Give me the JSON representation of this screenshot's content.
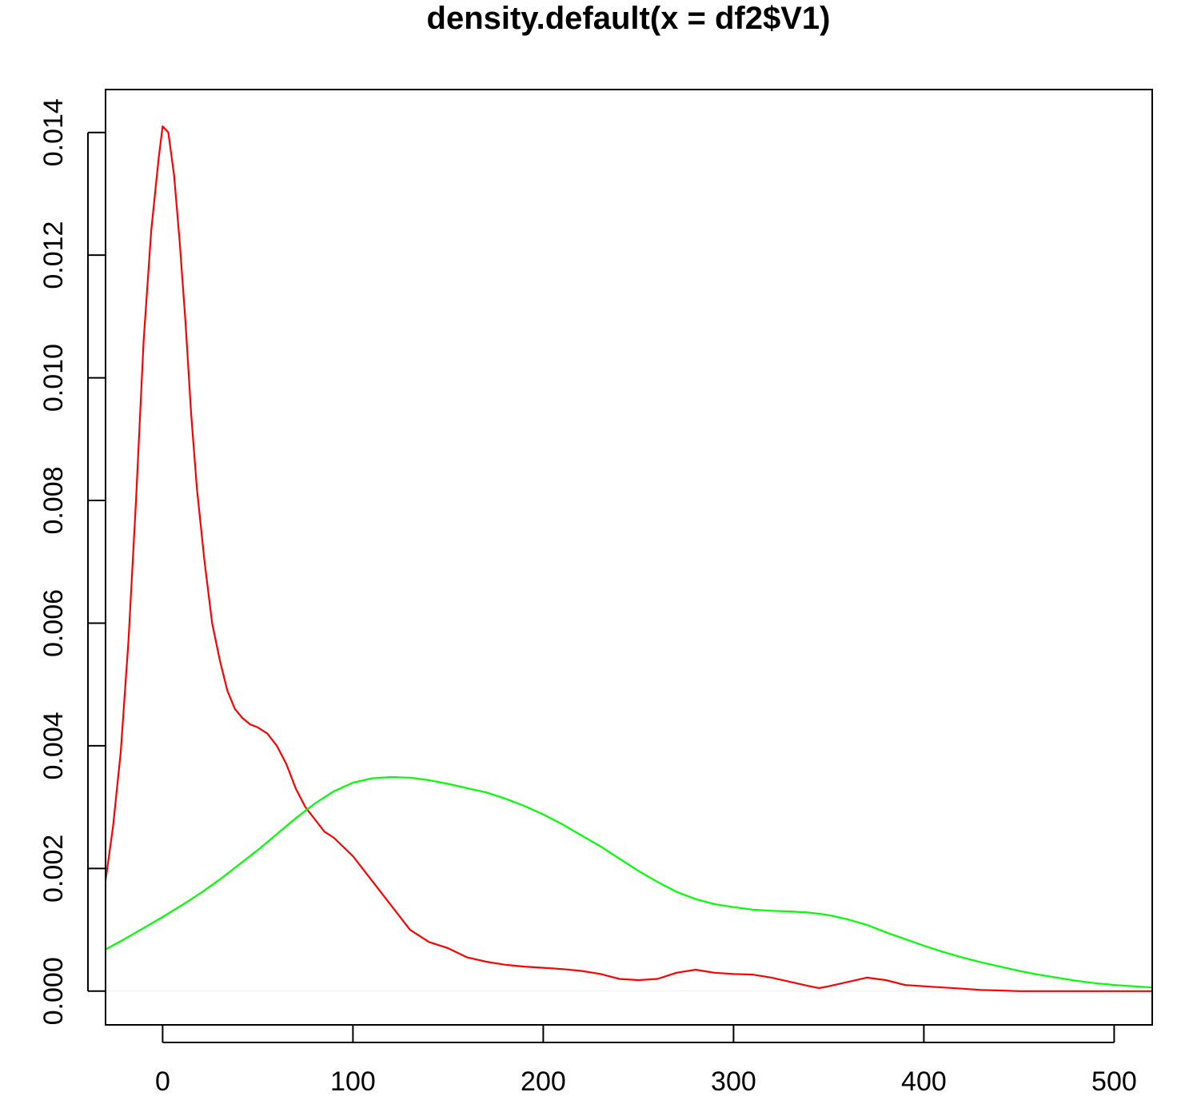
{
  "chart_data": {
    "type": "line",
    "title": "density.default(x = df2$V1)",
    "xlabel": "",
    "ylabel": "",
    "xlim": [
      -30,
      520
    ],
    "ylim": [
      -0.00055,
      0.0147
    ],
    "x_ticks": [
      0,
      100,
      200,
      300,
      400,
      500
    ],
    "y_ticks": [
      0.0,
      0.002,
      0.004,
      0.006,
      0.008,
      0.01,
      0.012,
      0.014
    ],
    "x_tick_labels": [
      "0",
      "100",
      "200",
      "300",
      "400",
      "500"
    ],
    "y_tick_labels": [
      "0.000",
      "0.002",
      "0.004",
      "0.006",
      "0.008",
      "0.010",
      "0.012",
      "0.014"
    ],
    "grid": false,
    "baseline": 0,
    "series": [
      {
        "color": "#ff0000",
        "x": [
          -30,
          -26,
          -22,
          -18,
          -14,
          -10,
          -6,
          -2,
          0,
          3,
          6,
          9,
          12,
          15,
          18,
          22,
          26,
          30,
          34,
          38,
          42,
          46,
          50,
          55,
          60,
          65,
          70,
          75,
          80,
          85,
          90,
          100,
          110,
          120,
          130,
          140,
          150,
          160,
          170,
          180,
          190,
          200,
          210,
          220,
          230,
          240,
          250,
          260,
          270,
          280,
          290,
          300,
          310,
          320,
          330,
          340,
          345,
          350,
          360,
          370,
          380,
          390,
          400,
          410,
          420,
          430,
          440,
          450,
          460,
          480,
          500,
          520
        ],
        "y": [
          0.0018,
          0.0027,
          0.0039,
          0.0057,
          0.008,
          0.0106,
          0.0124,
          0.0136,
          0.0141,
          0.014,
          0.0133,
          0.0122,
          0.0109,
          0.0094,
          0.0082,
          0.007,
          0.006,
          0.0054,
          0.0049,
          0.0046,
          0.00445,
          0.00435,
          0.0043,
          0.0042,
          0.004,
          0.0037,
          0.0033,
          0.003,
          0.0028,
          0.0026,
          0.0025,
          0.0022,
          0.0018,
          0.0014,
          0.001,
          0.0008,
          0.0007,
          0.00055,
          0.00048,
          0.00043,
          0.0004,
          0.00038,
          0.00036,
          0.00033,
          0.00028,
          0.0002,
          0.00018,
          0.0002,
          0.0003,
          0.00035,
          0.0003,
          0.00028,
          0.00027,
          0.00022,
          0.00015,
          8e-05,
          5e-05,
          8e-05,
          0.00015,
          0.00022,
          0.00018,
          0.0001,
          8e-05,
          6e-05,
          4e-05,
          2e-05,
          1e-05,
          0.0,
          0.0,
          0.0,
          0.0,
          0.0
        ]
      },
      {
        "color": "#00ff00",
        "x": [
          -30,
          -20,
          -10,
          0,
          10,
          20,
          30,
          40,
          50,
          60,
          70,
          80,
          90,
          100,
          110,
          120,
          130,
          140,
          150,
          160,
          170,
          180,
          190,
          200,
          210,
          220,
          230,
          240,
          250,
          260,
          270,
          280,
          290,
          300,
          310,
          320,
          330,
          340,
          350,
          360,
          370,
          380,
          390,
          400,
          410,
          420,
          430,
          440,
          450,
          460,
          470,
          480,
          490,
          500,
          510,
          520
        ],
        "y": [
          0.00068,
          0.00085,
          0.00103,
          0.00121,
          0.0014,
          0.0016,
          0.00182,
          0.00206,
          0.0023,
          0.00256,
          0.00282,
          0.00306,
          0.00326,
          0.0034,
          0.00347,
          0.00349,
          0.00348,
          0.00344,
          0.00338,
          0.00331,
          0.00324,
          0.00314,
          0.00302,
          0.00288,
          0.00272,
          0.00254,
          0.00236,
          0.00216,
          0.00196,
          0.00178,
          0.00162,
          0.0015,
          0.00142,
          0.00137,
          0.00133,
          0.00131,
          0.0013,
          0.00128,
          0.00124,
          0.00117,
          0.00108,
          0.00096,
          0.00085,
          0.00074,
          0.00064,
          0.00055,
          0.00047,
          0.0004,
          0.00033,
          0.00027,
          0.00022,
          0.00017,
          0.00013,
          0.0001,
          8e-05,
          6e-05
        ]
      }
    ]
  }
}
